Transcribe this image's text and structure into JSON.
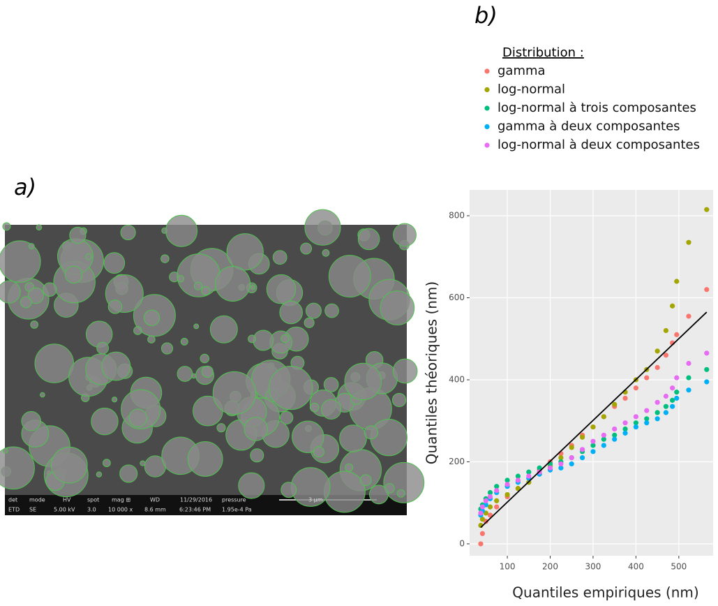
{
  "labels": {
    "a": "a)",
    "b": "b)"
  },
  "image": {
    "infobar": [
      [
        "det",
        "mode",
        "HV",
        "spot",
        "mag ⊞",
        "WD",
        "11/29/2016",
        "pressure",
        "3 µm"
      ],
      [
        "ETD",
        "SE",
        "5.00 kV",
        "3.0",
        "10 000 x",
        "8.6 mm",
        "6:23:46 PM",
        "1.95e-4 Pa"
      ]
    ]
  },
  "chart_data": {
    "type": "scatter",
    "xlabel": "Quantiles empiriques (nm)",
    "ylabel": "Quantiles théoriques (nm)",
    "legend_title": "Distribution :",
    "xlim": [
      12,
      580
    ],
    "ylim": [
      -29,
      863
    ],
    "xticks": [
      100,
      200,
      300,
      400,
      500
    ],
    "yticks": [
      0,
      200,
      400,
      600,
      800
    ],
    "grid": true,
    "x": [
      38,
      42,
      50,
      60,
      75,
      100,
      125,
      150,
      175,
      200,
      225,
      250,
      275,
      300,
      325,
      350,
      375,
      400,
      425,
      450,
      470,
      485,
      495,
      523,
      565
    ],
    "series": [
      {
        "name": "gamma",
        "color": "#F8766D",
        "values": [
          0,
          25,
          55,
          70,
          90,
          115,
          135,
          160,
          180,
          200,
          220,
          240,
          265,
          285,
          310,
          335,
          355,
          380,
          405,
          430,
          460,
          490,
          510,
          555,
          620
        ]
      },
      {
        "name": "log-normal",
        "color": "#A3A500",
        "values": [
          45,
          60,
          75,
          90,
          105,
          120,
          135,
          150,
          170,
          190,
          210,
          235,
          260,
          285,
          310,
          340,
          370,
          400,
          425,
          470,
          520,
          580,
          640,
          735,
          815
        ]
      },
      {
        "name": "log-normal à trois composantes",
        "color": "#00BF7D",
        "values": [
          85,
          95,
          110,
          125,
          140,
          155,
          165,
          175,
          185,
          195,
          200,
          210,
          225,
          240,
          255,
          265,
          280,
          295,
          305,
          320,
          335,
          350,
          370,
          405,
          425
        ]
      },
      {
        "name": "gamma à deux composantes",
        "color": "#00B0F6",
        "values": [
          70,
          80,
          95,
          110,
          125,
          140,
          150,
          160,
          170,
          180,
          185,
          195,
          210,
          225,
          240,
          255,
          270,
          285,
          295,
          305,
          320,
          335,
          355,
          375,
          395
        ]
      },
      {
        "name": "log-normal à deux composantes",
        "color": "#E76BF3",
        "values": [
          75,
          90,
          105,
          115,
          130,
          145,
          155,
          165,
          175,
          185,
          195,
          210,
          230,
          250,
          265,
          280,
          295,
          310,
          325,
          345,
          360,
          380,
          405,
          440,
          465
        ]
      }
    ],
    "reference_line": {
      "color": "#000000",
      "x": [
        38,
        565
      ],
      "values": [
        40,
        565
      ]
    }
  }
}
